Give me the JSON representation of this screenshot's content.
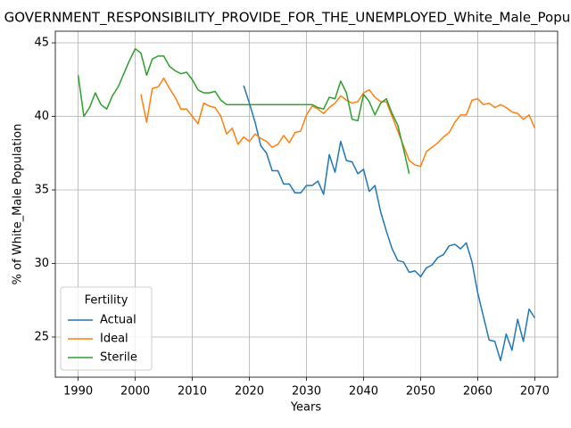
{
  "chart_data": {
    "type": "line",
    "title": "GOVERNMENT_RESPONSIBILITY_PROVIDE_FOR_THE_UNEMPLOYED_White_Male_Population",
    "x_label": "Years",
    "y_label": "% of White_Male Population",
    "x": [
      1990,
      1991,
      1992,
      1993,
      1994,
      1995,
      1996,
      1997,
      1998,
      1999,
      2000,
      2001,
      2002,
      2003,
      2004,
      2005,
      2006,
      2007,
      2008,
      2009,
      2010,
      2011,
      2012,
      2013,
      2014,
      2015,
      2016,
      2017,
      2018,
      2019,
      2020,
      2021,
      2022,
      2023,
      2024,
      2025,
      2026,
      2027,
      2028,
      2029,
      2030,
      2031,
      2032,
      2033,
      2034,
      2035,
      2036,
      2037,
      2038,
      2039,
      2040,
      2041,
      2042,
      2043,
      2044,
      2045,
      2046,
      2047,
      2048,
      2049,
      2050,
      2051,
      2052,
      2053,
      2054,
      2055,
      2056,
      2057,
      2058,
      2059,
      2060,
      2061,
      2062,
      2063,
      2064,
      2065,
      2066,
      2067,
      2068,
      2069,
      2070
    ],
    "series": [
      {
        "name": "Actual",
        "color": "#1f77b4",
        "values": [
          null,
          null,
          null,
          null,
          null,
          null,
          null,
          null,
          null,
          null,
          null,
          null,
          null,
          null,
          null,
          null,
          null,
          null,
          null,
          null,
          null,
          null,
          null,
          null,
          null,
          null,
          null,
          null,
          null,
          42.1,
          40.9,
          39.6,
          38.0,
          37.5,
          36.3,
          36.3,
          35.4,
          35.4,
          34.8,
          34.8,
          35.3,
          35.3,
          35.6,
          34.7,
          37.4,
          36.2,
          38.3,
          37.0,
          36.9,
          36.1,
          36.4,
          34.9,
          35.3,
          33.5,
          32.2,
          31.0,
          30.2,
          30.1,
          29.4,
          29.5,
          29.1,
          29.7,
          29.9,
          30.4,
          30.6,
          31.2,
          31.3,
          31.0,
          31.4,
          30.1,
          28.0,
          26.4,
          24.8,
          24.7,
          23.4,
          25.2,
          24.1,
          26.2,
          24.7,
          26.9,
          26.3
        ]
      },
      {
        "name": "Ideal",
        "color": "#ff7f0e",
        "values": [
          null,
          null,
          null,
          null,
          null,
          null,
          null,
          null,
          null,
          null,
          null,
          41.5,
          39.6,
          41.9,
          42.0,
          42.6,
          41.9,
          41.3,
          40.5,
          40.5,
          40.0,
          39.5,
          40.9,
          40.7,
          40.6,
          40.0,
          38.8,
          39.2,
          38.1,
          38.6,
          38.3,
          38.8,
          38.5,
          38.3,
          37.9,
          38.1,
          38.7,
          38.2,
          38.9,
          39.0,
          40.1,
          40.7,
          40.5,
          40.2,
          40.6,
          40.9,
          41.4,
          41.1,
          40.9,
          41.0,
          41.6,
          41.8,
          41.3,
          41.0,
          41.0,
          40.0,
          39.0,
          38.0,
          37.0,
          36.7,
          36.6,
          37.6,
          37.9,
          38.2,
          38.6,
          38.9,
          39.6,
          40.1,
          40.1,
          41.1,
          41.2,
          40.8,
          40.9,
          40.6,
          40.8,
          40.6,
          40.3,
          40.2,
          39.8,
          40.1,
          39.2
        ]
      },
      {
        "name": "Sterile",
        "color": "#2ca02c",
        "values": [
          42.8,
          40.0,
          40.6,
          41.6,
          40.8,
          40.5,
          41.4,
          42.0,
          42.9,
          43.8,
          44.6,
          44.3,
          42.8,
          43.9,
          44.1,
          44.1,
          43.4,
          43.1,
          42.9,
          43.0,
          42.5,
          41.8,
          41.6,
          41.6,
          41.7,
          41.1,
          40.8,
          40.8,
          40.8,
          40.8,
          40.8,
          40.8,
          40.8,
          40.8,
          40.8,
          40.8,
          40.8,
          40.8,
          40.8,
          40.8,
          40.8,
          40.8,
          40.6,
          40.5,
          41.3,
          41.2,
          42.4,
          41.6,
          39.8,
          39.7,
          41.5,
          41.0,
          40.1,
          40.9,
          41.2,
          40.2,
          39.4,
          37.8,
          36.1,
          null,
          null,
          null,
          null,
          null,
          null,
          null,
          null,
          null,
          null,
          null,
          null,
          null,
          null,
          null,
          null,
          null,
          null,
          null,
          null,
          null,
          null
        ]
      }
    ],
    "xlim": [
      1986,
      2074
    ],
    "xticks": [
      1990,
      2000,
      2010,
      2020,
      2030,
      2040,
      2050,
      2060,
      2070
    ],
    "ylim": [
      22.27,
      45.79
    ],
    "yticks": [
      25,
      30,
      35,
      40,
      45
    ],
    "grid": true,
    "legend_title": "Fertility",
    "legend": "lower left"
  }
}
